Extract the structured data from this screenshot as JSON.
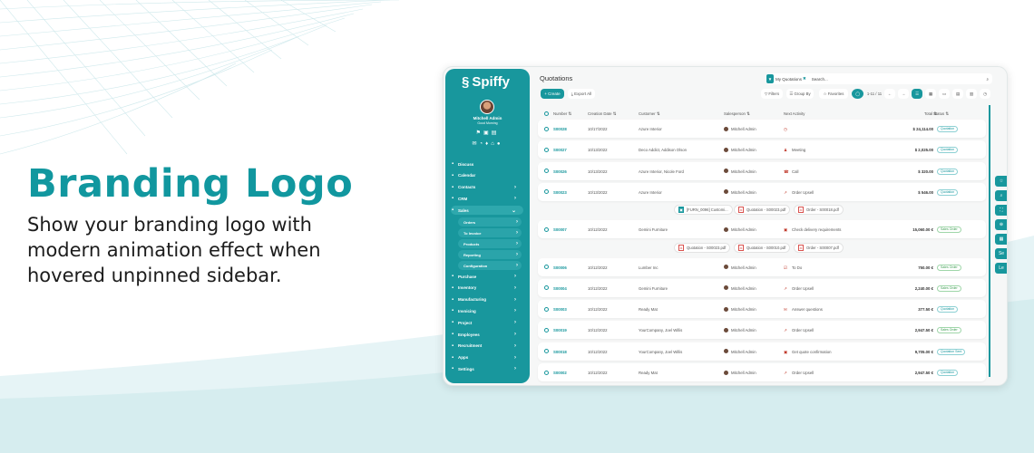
{
  "hero": {
    "title": "Branding Logo",
    "subtitle": "Show your branding logo with modern animation effect when hovered unpinned sidebar."
  },
  "colors": {
    "accent": "#18979d",
    "title": "#11979f"
  },
  "sidebar": {
    "logo": "Spiffy",
    "user_name": "Mitchell Admin",
    "greeting": "Good Morning",
    "items": [
      {
        "label": "Discuss",
        "icon": "chat-icon",
        "chevron": false
      },
      {
        "label": "Calendar",
        "icon": "calendar-icon",
        "chevron": false
      },
      {
        "label": "Contacts",
        "icon": "contacts-icon",
        "chevron": true
      },
      {
        "label": "CRM",
        "icon": "handshake-icon",
        "chevron": true
      },
      {
        "label": "Sales",
        "icon": "chart-icon",
        "chevron": true,
        "expanded": true
      },
      {
        "label": "Purchase",
        "icon": "cart-icon",
        "chevron": true
      },
      {
        "label": "Inventory",
        "icon": "box-icon",
        "chevron": true
      },
      {
        "label": "Manufacturing",
        "icon": "tools-icon",
        "chevron": true
      },
      {
        "label": "Invoicing",
        "icon": "invoice-icon",
        "chevron": true
      },
      {
        "label": "Project",
        "icon": "project-icon",
        "chevron": true
      },
      {
        "label": "Employees",
        "icon": "people-icon",
        "chevron": true
      },
      {
        "label": "Recruitment",
        "icon": "person-icon",
        "chevron": true
      },
      {
        "label": "Apps",
        "icon": "apps-icon",
        "chevron": true
      },
      {
        "label": "Settings",
        "icon": "gear-icon",
        "chevron": true
      }
    ],
    "sales_sub": [
      "Orders",
      "To Invoice",
      "Products",
      "Reporting",
      "Configuration"
    ]
  },
  "main": {
    "title": "Quotations",
    "create": "+ Create",
    "export": "Export All",
    "facet": "My Quotations",
    "search_placeholder": "Search...",
    "filters": "Filters",
    "group_by": "Group By",
    "favorites": "Favorites",
    "pager": "1-11 / 11",
    "columns": [
      "Number",
      "Creation Date",
      "Customer",
      "Salesperson",
      "Next Activity",
      "Total",
      "Status"
    ],
    "rows": [
      {
        "number": "S00028",
        "date": "10/17/2022",
        "customer": "Azure Interior",
        "salesperson": "Mitchell Admin",
        "activity": "",
        "activity_icon": "clock-icon",
        "total": "$ 24,114.00",
        "status": "Quotation"
      },
      {
        "number": "S00027",
        "date": "10/13/2022",
        "customer": "Deco Addict, Addison Olson",
        "salesperson": "Mitchell Admin",
        "activity": "Meeting",
        "activity_icon": "meeting-icon",
        "total": "$ 2,025.00",
        "status": "Quotation"
      },
      {
        "number": "S00026",
        "date": "10/13/2022",
        "customer": "Azure Interior, Nicole Ford",
        "salesperson": "Mitchell Admin",
        "activity": "Call",
        "activity_icon": "phone-icon",
        "total": "$ 320.00",
        "status": "Quotation"
      },
      {
        "number": "S00023",
        "date": "10/13/2022",
        "customer": "Azure Interior",
        "salesperson": "Mitchell Admin",
        "activity": "Order Upsell",
        "activity_icon": "trend-icon",
        "total": "$ 546.00",
        "status": "Quotation",
        "attachments": [
          "[FURN_0096] Customi...",
          "Quotation - S00023.pdf",
          "Order - S00018.pdf"
        ]
      },
      {
        "number": "S00007",
        "date": "10/12/2022",
        "customer": "Gemini Furniture",
        "salesperson": "Mitchell Admin",
        "activity": "Check delivery requirements",
        "activity_icon": "calendar-icon",
        "total": "15,060.00 €",
        "status": "Sales Order",
        "attachments": [
          "Quotation - S00023.pdf",
          "Quotation - S00010.pdf",
          "Order - S00007.pdf"
        ]
      },
      {
        "number": "S00006",
        "date": "10/12/2022",
        "customer": "Lumber Inc",
        "salesperson": "Mitchell Admin",
        "activity": "To Do",
        "activity_icon": "todo-icon",
        "total": "750.00 €",
        "status": "Sales Order"
      },
      {
        "number": "S00004",
        "date": "10/12/2022",
        "customer": "Gemini Furniture",
        "salesperson": "Mitchell Admin",
        "activity": "Order Upsell",
        "activity_icon": "trend-icon",
        "total": "2,240.00 €",
        "status": "Sales Order"
      },
      {
        "number": "S00003",
        "date": "10/12/2022",
        "customer": "Ready Mat",
        "salesperson": "Mitchell Admin",
        "activity": "Answer questions",
        "activity_icon": "mail-icon",
        "total": "377.50 €",
        "status": "Quotation"
      },
      {
        "number": "S00019",
        "date": "10/12/2022",
        "customer": "YourCompany, Joel Willis",
        "salesperson": "Mitchell Admin",
        "activity": "Order Upsell",
        "activity_icon": "trend-icon",
        "total": "2,947.50 €",
        "status": "Sales Order"
      },
      {
        "number": "S00018",
        "date": "10/12/2022",
        "customer": "YourCompany, Joel Willis",
        "salesperson": "Mitchell Admin",
        "activity": "Get quote confirmation",
        "activity_icon": "calendar-icon",
        "total": "9,705.00 €",
        "status": "Quotation Sent"
      },
      {
        "number": "S00002",
        "date": "10/12/2022",
        "customer": "Ready Mat",
        "salesperson": "Mitchell Admin",
        "activity": "Order Upsell",
        "activity_icon": "trend-icon",
        "total": "2,947.50 €",
        "status": "Quotation"
      }
    ],
    "float_buttons": [
      "☆",
      "⌕",
      "⛶",
      "⊕",
      "▦",
      "Se",
      "Le"
    ]
  }
}
